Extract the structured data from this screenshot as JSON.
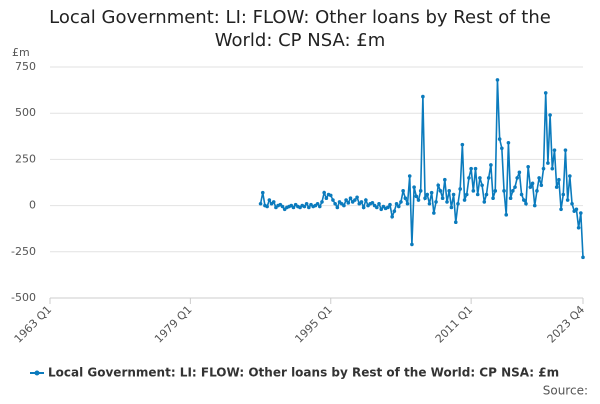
{
  "chart_data": {
    "type": "line",
    "title": "Local Government: LI: FLOW: Other loans by Rest of the World: CP NSA: £m",
    "y_label": "£m",
    "source": "Source:",
    "categories": [
      "1963 Q1",
      null,
      null,
      null,
      null,
      null,
      null,
      null,
      null,
      null,
      null,
      null,
      null,
      null,
      null,
      null,
      null,
      null,
      null,
      null,
      null,
      null,
      null,
      null,
      null,
      null,
      null,
      null,
      null,
      null,
      null,
      null,
      null,
      null,
      null,
      null,
      null,
      null,
      null,
      null,
      null,
      null,
      null,
      null,
      null,
      null,
      null,
      null,
      null,
      null,
      null,
      null,
      null,
      null,
      null,
      null,
      null,
      null,
      null,
      null,
      null,
      null,
      null,
      null,
      "1979 Q1",
      null,
      null,
      null,
      null,
      null,
      null,
      null,
      null,
      null,
      null,
      null,
      null,
      null,
      null,
      null,
      null,
      null,
      null,
      null,
      null,
      null,
      null,
      null,
      null,
      null,
      null,
      null,
      null,
      null,
      null,
      null,
      null,
      null,
      null,
      null,
      null,
      null,
      null,
      null,
      null,
      null,
      null,
      null,
      null,
      null,
      null,
      null,
      null,
      null,
      null,
      null,
      null,
      null,
      null,
      null,
      null,
      null,
      null,
      null,
      null,
      null,
      null,
      null,
      "1995 Q1",
      null,
      null,
      null,
      null,
      null,
      null,
      null,
      null,
      null,
      null,
      null,
      null,
      null,
      null,
      null,
      null,
      null,
      null,
      null,
      null,
      null,
      null,
      null,
      null,
      null,
      null,
      null,
      null,
      null,
      null,
      null,
      null,
      null,
      null,
      null,
      null,
      null,
      null,
      null,
      null,
      null,
      null,
      null,
      null,
      null,
      null,
      null,
      null,
      null,
      null,
      null,
      null,
      null,
      null,
      null,
      null,
      null,
      null,
      null,
      null,
      null,
      null,
      null,
      "2011 Q1",
      null,
      null,
      null,
      null,
      null,
      null,
      null,
      null,
      null,
      null,
      null,
      null,
      null,
      null,
      null,
      null,
      null,
      null,
      null,
      null,
      null,
      null,
      null,
      null,
      null,
      null,
      null,
      null,
      null,
      null,
      null,
      null,
      null,
      null,
      null,
      null,
      null,
      null,
      null,
      null,
      null,
      null,
      null,
      null,
      null,
      null,
      null,
      null,
      null,
      null,
      "2023 Q4"
    ],
    "series": [
      {
        "name": "Local Government: LI: FLOW: Other loans by Rest of the World: CP NSA: £m",
        "color": "#0b7bbd",
        "values": [
          null,
          null,
          null,
          null,
          null,
          null,
          null,
          null,
          null,
          null,
          null,
          null,
          null,
          null,
          null,
          null,
          null,
          null,
          null,
          null,
          null,
          null,
          null,
          null,
          null,
          null,
          null,
          null,
          null,
          null,
          null,
          null,
          null,
          null,
          null,
          null,
          null,
          null,
          null,
          null,
          null,
          null,
          null,
          null,
          null,
          null,
          null,
          null,
          null,
          null,
          null,
          null,
          null,
          null,
          null,
          null,
          null,
          null,
          null,
          null,
          null,
          null,
          null,
          null,
          null,
          null,
          null,
          null,
          null,
          null,
          null,
          null,
          null,
          null,
          null,
          null,
          null,
          null,
          null,
          null,
          null,
          null,
          null,
          null,
          null,
          null,
          null,
          null,
          null,
          null,
          null,
          null,
          null,
          null,
          null,
          null,
          10,
          70,
          0,
          -5,
          30,
          10,
          20,
          -10,
          0,
          5,
          -5,
          -20,
          -10,
          -5,
          0,
          -10,
          5,
          -5,
          -10,
          0,
          -5,
          10,
          -10,
          5,
          -5,
          0,
          10,
          -5,
          20,
          70,
          40,
          60,
          55,
          30,
          10,
          -10,
          20,
          10,
          0,
          30,
          15,
          40,
          20,
          30,
          45,
          10,
          20,
          -10,
          30,
          0,
          10,
          15,
          0,
          -10,
          10,
          -20,
          -5,
          -15,
          -10,
          5,
          -60,
          -30,
          10,
          -5,
          20,
          80,
          40,
          10,
          160,
          -210,
          100,
          50,
          30,
          80,
          590,
          40,
          60,
          10,
          70,
          -40,
          20,
          110,
          80,
          40,
          140,
          20,
          80,
          -10,
          60,
          -90,
          10,
          90,
          330,
          30,
          60,
          150,
          200,
          80,
          200,
          60,
          150,
          110,
          20,
          60,
          150,
          220,
          40,
          80,
          680,
          360,
          310,
          80,
          -50,
          340,
          40,
          80,
          100,
          150,
          180,
          60,
          30,
          10,
          210,
          100,
          120,
          0,
          80,
          150,
          110,
          200,
          610,
          230,
          490,
          200,
          300,
          100,
          140,
          -20,
          60,
          300,
          30,
          160,
          10,
          -30,
          -20,
          -120,
          -40,
          -280
        ]
      }
    ],
    "ylim": [
      -500,
      750
    ],
    "yticks": [
      750,
      500,
      250,
      0,
      -250,
      -500
    ],
    "grid": true
  }
}
